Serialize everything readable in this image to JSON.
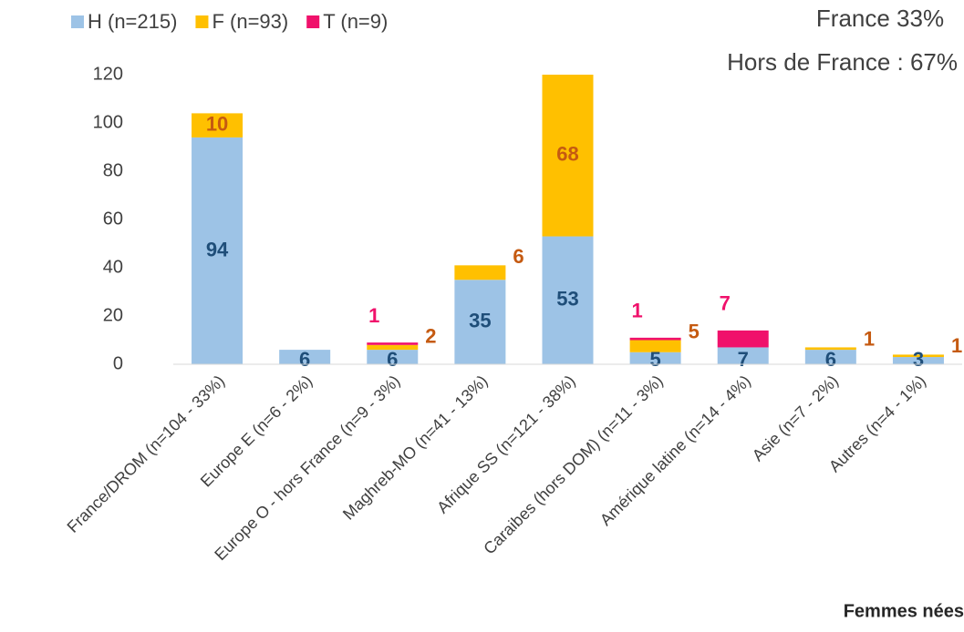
{
  "chart_data": {
    "type": "stacked_bar",
    "categories": [
      "France/DROM (n=104 - 33%)",
      "Europe E (n=6 - 2%)",
      "Europe O - hors France (n=9 - 3%)",
      "Maghreb-MO (n=41 - 13%)",
      "Afrique SS (n=121 - 38%)",
      "Caraibes (hors DOM) (n=11 - 3%)",
      "Amérique latine (n=14 - 4%)",
      "Asie (n=7 - 2%)",
      "Autres (n=4 - 1%)"
    ],
    "series": [
      {
        "name": "H (n=215)",
        "color": "#9dc3e6",
        "label_color": "#1f4e79",
        "values": [
          94,
          6,
          6,
          35,
          53,
          5,
          7,
          6,
          3
        ]
      },
      {
        "name": "F (n=93)",
        "color": "#ffc000",
        "label_color": "#c55a11",
        "values": [
          10,
          null,
          2,
          6,
          68,
          5,
          null,
          1,
          1
        ]
      },
      {
        "name": "T (n=9)",
        "color": "#f0116b",
        "label_color": "#f0116b",
        "values": [
          null,
          null,
          1,
          null,
          null,
          1,
          7,
          null,
          null
        ]
      }
    ],
    "ylim": [
      0,
      120
    ],
    "yticks": [
      0,
      20,
      40,
      60,
      80,
      100,
      120
    ],
    "grid": false,
    "annotations": [
      "France 33%",
      "Hors de France : 67%",
      "Femmes nées"
    ]
  }
}
